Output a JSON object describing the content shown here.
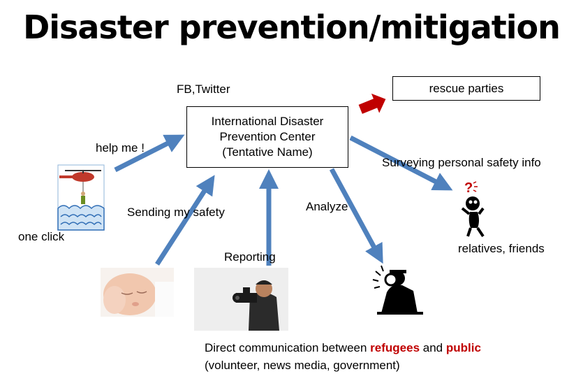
{
  "title": "Disaster prevention/mitigation",
  "center": {
    "line1": "International Disaster",
    "line2": "Prevention  Center",
    "line3": "(Tentative Name)"
  },
  "rescue": "rescue parties",
  "labels": {
    "fb_twitter": "FB,Twitter",
    "help_me": "help me !",
    "one_click": "one click",
    "sending": "Sending  my safety",
    "reporting": "Reporting",
    "analyze": "Analyze",
    "surveying": "Surveying personal safety info",
    "relatives": "relatives, friends"
  },
  "bottom": {
    "pre": "Direct communication between ",
    "refugees": "refugees",
    "mid": " and ",
    "public": "public",
    "line2": "(volunteer, news media, government)"
  },
  "colors": {
    "arrow": "#4f81bd",
    "red_arrow": "#c00000",
    "highlight": "#c00000"
  },
  "icons": [
    "helicopter-rescue-icon",
    "baby-photo",
    "cameraman-photo",
    "analyst-silhouette-icon",
    "worried-person-icon"
  ]
}
